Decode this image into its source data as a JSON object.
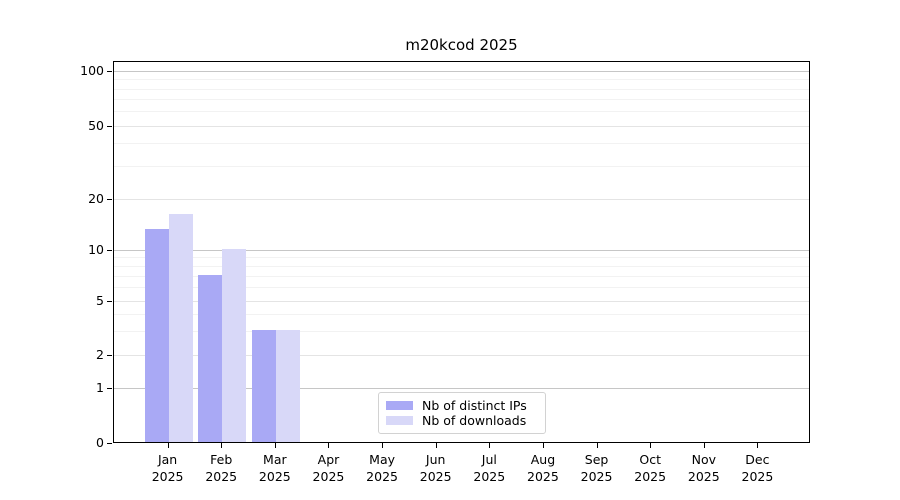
{
  "chart_data": {
    "type": "bar",
    "title": "m20kcod 2025",
    "categories": [
      "Jan",
      "Feb",
      "Mar",
      "Apr",
      "May",
      "Jun",
      "Jul",
      "Aug",
      "Sep",
      "Oct",
      "Nov",
      "Dec"
    ],
    "year_label": "2025",
    "series": [
      {
        "name": "Nb of distinct IPs",
        "color": "#a9a9f5",
        "values": [
          13,
          7,
          3,
          0,
          0,
          0,
          0,
          0,
          0,
          0,
          0,
          0
        ]
      },
      {
        "name": "Nb of downloads",
        "color": "#d8d8f8",
        "values": [
          16,
          10,
          3,
          0,
          0,
          0,
          0,
          0,
          0,
          0,
          0,
          0
        ]
      }
    ],
    "y_axis": {
      "scale": "log-like-with-zero-baseline",
      "ticks": [
        0,
        1,
        2,
        5,
        10,
        20,
        50,
        100
      ],
      "minor_ticks": [
        3,
        4,
        6,
        7,
        8,
        9,
        30,
        40,
        60,
        70,
        80,
        90
      ]
    },
    "legend": {
      "position": "lower-center",
      "entries": [
        "Nb of distinct IPs",
        "Nb of downloads"
      ]
    },
    "grid": true
  },
  "colors": {
    "bar_distinct_ips": "#a9a9f5",
    "bar_downloads": "#d8d8f8",
    "grid_decade": "#c6c6c6",
    "grid_mid": "#e4e4e4",
    "grid_minor": "#f2f2f2",
    "axis": "#000000",
    "legend_border": "#d2d2d2"
  }
}
